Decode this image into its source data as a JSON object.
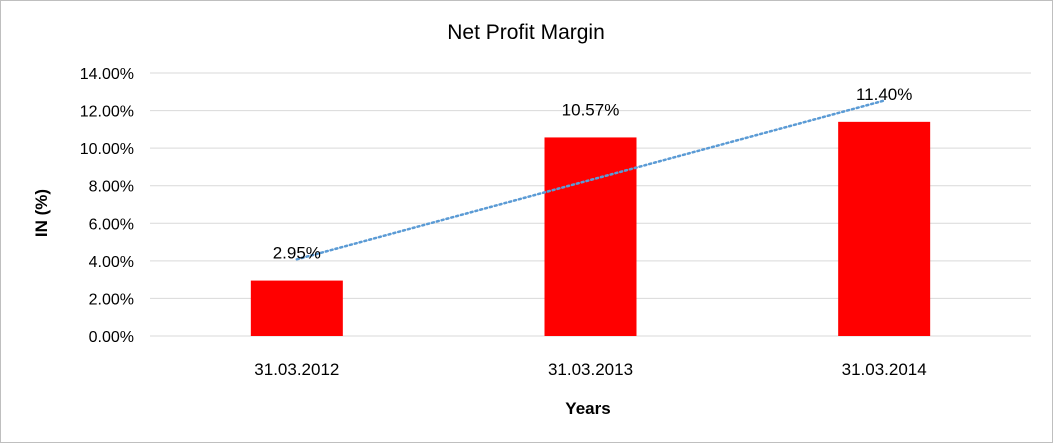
{
  "chart_data": {
    "type": "bar",
    "title": "Net Profit Margin",
    "xlabel": "Years",
    "ylabel": "IN (%)",
    "categories": [
      "31.03.2012",
      "31.03.2013",
      "31.03.2014"
    ],
    "values": [
      2.95,
      10.57,
      11.4
    ],
    "data_labels": [
      "2.95%",
      "10.57%",
      "11.40%"
    ],
    "ylim": [
      0,
      14
    ],
    "y_ticks": [
      0,
      2,
      4,
      6,
      8,
      10,
      12,
      14
    ],
    "y_tick_labels": [
      "0.00%",
      "2.00%",
      "4.00%",
      "6.00%",
      "8.00%",
      "10.00%",
      "12.00%",
      "14.00%"
    ],
    "grid": true,
    "legend": "none",
    "trendline": {
      "type": "linear",
      "style": "dotted"
    },
    "colors": {
      "bar": "#ff0000",
      "trendline": "#5b9bd5",
      "grid": "#d9d9d9"
    }
  }
}
